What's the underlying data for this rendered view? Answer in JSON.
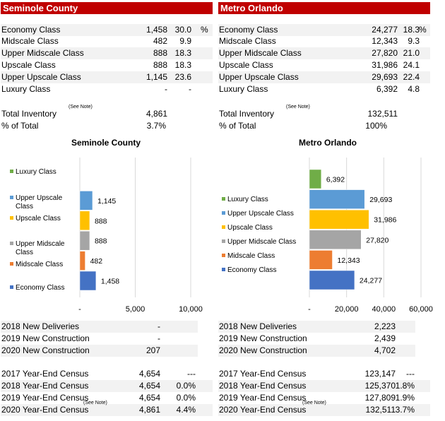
{
  "panels": [
    {
      "id": "seminole",
      "header": "Seminole County",
      "classes": [
        {
          "label": "Economy Class",
          "rooms": "1,458",
          "pct": "30.0",
          "unit": "%"
        },
        {
          "label": "Midscale Class",
          "rooms": "482",
          "pct": "9.9",
          "unit": ""
        },
        {
          "label": "Upper Midscale Class",
          "rooms": "888",
          "pct": "18.3",
          "unit": ""
        },
        {
          "label": "Upscale Class",
          "rooms": "888",
          "pct": "18.3",
          "unit": ""
        },
        {
          "label": "Upper Upscale Class",
          "rooms": "1,145",
          "pct": "23.6",
          "unit": ""
        },
        {
          "label": "Luxury Class",
          "rooms": "-",
          "pct": "-",
          "unit": ""
        }
      ],
      "total_label": "Total Inventory",
      "total_note": "(See Note)",
      "total_value": "4,861",
      "pct_total_label": "% of Total",
      "pct_total_value": "3.7%",
      "pipeline": [
        {
          "label": "2018 New Deliveries",
          "value": "-"
        },
        {
          "label": "2019 New Construction",
          "value": "-"
        },
        {
          "label": "2020 New Construction",
          "value": "207"
        }
      ],
      "census": [
        {
          "label": "2017 Year-End Census",
          "note": "",
          "value": "4,654",
          "change": "---"
        },
        {
          "label": "2018 Year-End Census",
          "note": "",
          "value": "4,654",
          "change": "0.0%"
        },
        {
          "label": "2019 Year-End Census",
          "note": "",
          "value": "4,654",
          "change": "0.0%"
        },
        {
          "label": "2020 Year-End Census",
          "note": "(See Note)",
          "value": "4,861",
          "change": "4.4%"
        }
      ]
    },
    {
      "id": "metro",
      "header": "Metro Orlando",
      "classes": [
        {
          "label": "Economy Class",
          "rooms": "24,277",
          "pct": "18.3",
          "unit": "%"
        },
        {
          "label": "Midscale Class",
          "rooms": "12,343",
          "pct": "9.3",
          "unit": ""
        },
        {
          "label": "Upper Midscale Class",
          "rooms": "27,820",
          "pct": "21.0",
          "unit": ""
        },
        {
          "label": "Upscale Class",
          "rooms": "31,986",
          "pct": "24.1",
          "unit": ""
        },
        {
          "label": "Upper Upscale Class",
          "rooms": "29,693",
          "pct": "22.4",
          "unit": ""
        },
        {
          "label": "Luxury Class",
          "rooms": "6,392",
          "pct": "4.8",
          "unit": ""
        }
      ],
      "total_label": "Total Inventory",
      "total_note": "(See Note)",
      "total_value": "132,511",
      "pct_total_label": "% of Total",
      "pct_total_value": "100%",
      "pipeline": [
        {
          "label": "2018 New Deliveries",
          "value": "2,223"
        },
        {
          "label": "2019 New Construction",
          "value": "2,439"
        },
        {
          "label": "2020 New Construction",
          "value": "4,702"
        }
      ],
      "census": [
        {
          "label": "2017 Year-End Census",
          "note": "",
          "value": "123,147",
          "change": "---"
        },
        {
          "label": "2018 Year-End Census",
          "note": "",
          "value": "125,370",
          "change": "1.8%"
        },
        {
          "label": "2019 Year-End Census",
          "note": "",
          "value": "127,809",
          "change": "1.9%"
        },
        {
          "label": "2020 Year-End Census",
          "note": "(See Note)",
          "value": "132,511",
          "change": "3.7%"
        }
      ]
    }
  ],
  "chart_data": [
    {
      "type": "bar",
      "orientation": "horizontal",
      "title": "Seminole County",
      "categories": [
        "Economy Class",
        "Midscale Class",
        "Upper Midscale Class",
        "Upscale Class",
        "Upper Upscale Class",
        "Luxury Class"
      ],
      "values": [
        1458,
        482,
        888,
        888,
        1145,
        0
      ],
      "data_labels": [
        "1,458",
        "482",
        "888",
        "888",
        "1,145",
        ""
      ],
      "colors": [
        "#4472c4",
        "#ed7d31",
        "#a5a5a5",
        "#ffc000",
        "#5b9bd5",
        "#70ad47"
      ],
      "xlim": [
        0,
        10000
      ],
      "xticks": [
        0,
        5000,
        10000
      ],
      "xtick_labels": [
        "-",
        "5,000",
        "10,000"
      ],
      "legend": "left",
      "grid": true
    },
    {
      "type": "bar",
      "orientation": "horizontal",
      "title": "Metro Orlando",
      "categories": [
        "Economy Class",
        "Midscale Class",
        "Upper Midscale Class",
        "Upscale Class",
        "Upper Upscale Class",
        "Luxury Class"
      ],
      "values": [
        24277,
        12343,
        27820,
        31986,
        29693,
        6392
      ],
      "data_labels": [
        "24,277",
        "12,343",
        "27,820",
        "31,986",
        "29,693",
        "6,392"
      ],
      "colors": [
        "#4472c4",
        "#ed7d31",
        "#a5a5a5",
        "#ffc000",
        "#5b9bd5",
        "#70ad47"
      ],
      "xlim": [
        0,
        60000
      ],
      "xticks": [
        0,
        20000,
        40000,
        60000
      ],
      "xtick_labels": [
        "-",
        "20,000",
        "40,000",
        "60,000"
      ],
      "legend": "left",
      "grid": true
    }
  ]
}
